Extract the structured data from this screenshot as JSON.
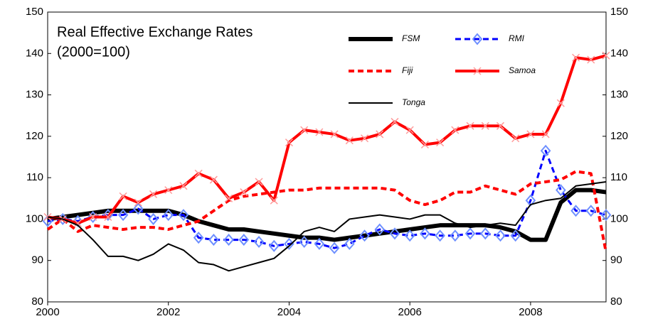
{
  "chart_data": {
    "type": "line",
    "title": "Real Effective Exchange Rates",
    "subtitle": "(2000=100)",
    "x": [
      2000,
      2000.25,
      2000.5,
      2000.75,
      2001,
      2001.25,
      2001.5,
      2001.75,
      2002,
      2002.25,
      2002.5,
      2002.75,
      2003,
      2003.25,
      2003.5,
      2003.75,
      2004,
      2004.25,
      2004.5,
      2004.75,
      2005,
      2005.25,
      2005.5,
      2005.75,
      2006,
      2006.25,
      2006.5,
      2006.75,
      2007,
      2007.25,
      2007.5,
      2007.75,
      2008,
      2008.25,
      2008.5,
      2008.75,
      2009,
      2009.25
    ],
    "xlim": [
      2000,
      2009.25
    ],
    "xticks": [
      2000,
      2002,
      2004,
      2006,
      2008
    ],
    "ylim": [
      80,
      150
    ],
    "yticks": [
      80,
      90,
      100,
      110,
      120,
      130,
      140,
      150
    ],
    "y2lim": [
      80,
      150
    ],
    "y2ticks": [
      80,
      90,
      100,
      110,
      120,
      130,
      140,
      150
    ],
    "series": [
      {
        "name": "FSM",
        "color": "#000000",
        "width": 6,
        "dash": "none",
        "marker": "none",
        "values": [
          100,
          100.5,
          101,
          101.5,
          102,
          102,
          102,
          102,
          102,
          101,
          99.5,
          98.5,
          97.5,
          97.5,
          97,
          96.5,
          96,
          95.5,
          95.5,
          95,
          95.5,
          96,
          96.5,
          97,
          97.5,
          98,
          98.5,
          98.5,
          98.5,
          98.5,
          98,
          97,
          95,
          95,
          104,
          107,
          107,
          106.5
        ]
      },
      {
        "name": "RMI",
        "color": "#0000ff",
        "width": 3,
        "dash": "8,5",
        "marker": "diamond",
        "values": [
          99.5,
          100,
          99.5,
          100.5,
          101,
          101,
          102.5,
          100,
          101,
          101,
          95.5,
          95,
          95,
          95,
          94.5,
          93.5,
          94,
          94.5,
          94,
          93,
          94,
          96,
          97.5,
          96.5,
          96,
          96.5,
          96,
          96,
          96.5,
          96.5,
          96,
          96,
          104.5,
          116.5,
          107,
          102,
          102,
          101
        ]
      },
      {
        "name": "Fiji",
        "color": "#ff0000",
        "width": 4,
        "dash": "8,5",
        "marker": "none",
        "values": [
          97.5,
          100,
          97,
          98.5,
          98,
          97.5,
          98,
          98,
          97.5,
          98.5,
          99.5,
          102,
          104.5,
          105.5,
          106,
          106.5,
          107,
          107,
          107.5,
          107.5,
          107.5,
          107.5,
          107.5,
          107,
          104.5,
          103.5,
          104.5,
          106.5,
          106.5,
          108,
          107,
          106,
          108.5,
          109,
          109.5,
          111.5,
          111,
          92
        ]
      },
      {
        "name": "Samoa",
        "color": "#ff0000",
        "width": 4,
        "dash": "none",
        "marker": "cross",
        "values": [
          100.5,
          100,
          99,
          100.5,
          100.5,
          105.5,
          104,
          106,
          107,
          108,
          111,
          109.5,
          105,
          106.5,
          109,
          104.5,
          118.5,
          121.5,
          121,
          120.5,
          119,
          119.5,
          120.5,
          123.5,
          121.5,
          118,
          118.5,
          121.5,
          122.5,
          122.5,
          122.5,
          119.5,
          120.5,
          120.5,
          128,
          139,
          138.5,
          139.5
        ]
      },
      {
        "name": "Tonga",
        "color": "#000000",
        "width": 2,
        "dash": "none",
        "marker": "none",
        "values": [
          100.5,
          100,
          98.5,
          95,
          91,
          91,
          90,
          91.5,
          94,
          92.5,
          89.5,
          89,
          87.5,
          88.5,
          89.5,
          90.5,
          93.5,
          97,
          98,
          97,
          100,
          100.5,
          101,
          100.5,
          100,
          101,
          101,
          99,
          98,
          98.5,
          99,
          98.5,
          103.5,
          104.5,
          105,
          108,
          108.5,
          109
        ]
      }
    ]
  }
}
